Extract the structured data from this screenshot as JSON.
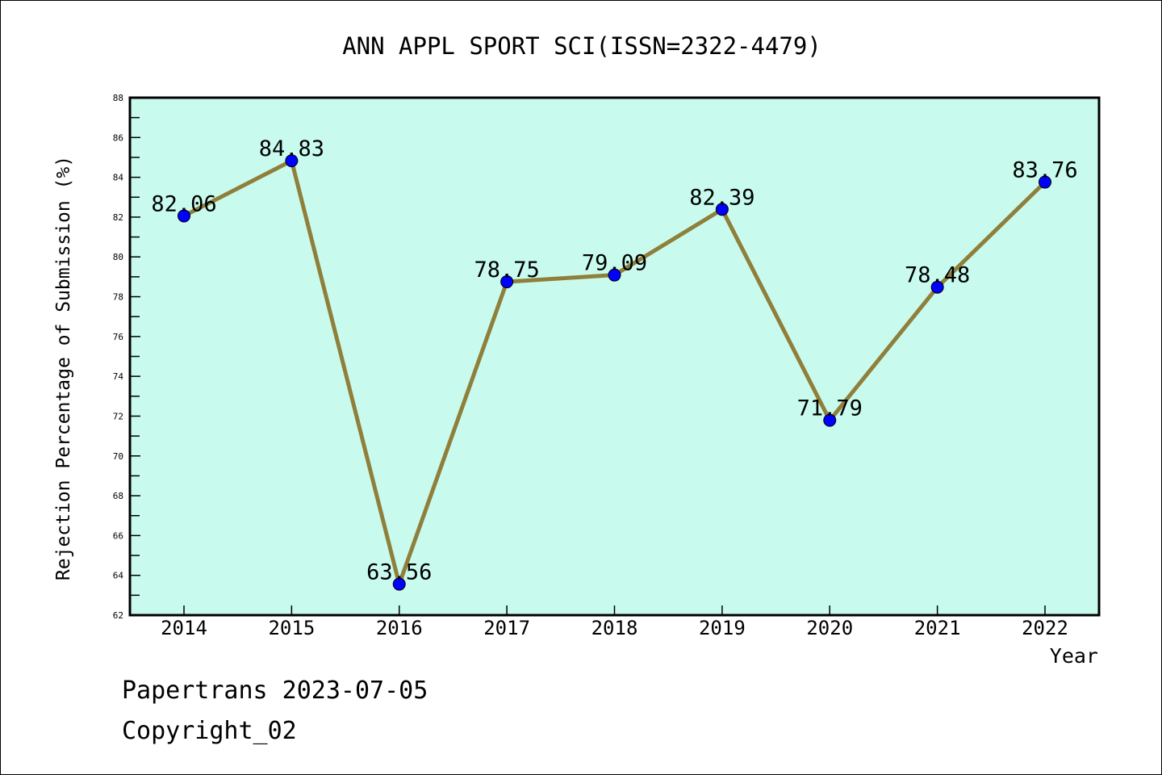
{
  "chart_data": {
    "type": "line",
    "title": "ANN APPL SPORT SCI(ISSN=2322-4479)",
    "xlabel": "Year",
    "ylabel": "Rejection Percentage of Submission (%)",
    "categories": [
      "2014",
      "2015",
      "2016",
      "2017",
      "2018",
      "2019",
      "2020",
      "2021",
      "2022"
    ],
    "series": [
      {
        "name": "Rejection Percentage",
        "values": [
          82.06,
          84.83,
          63.56,
          78.75,
          79.09,
          82.39,
          71.79,
          78.48,
          83.76
        ],
        "labels": [
          "82.06",
          "84.83",
          "63.56",
          "78.75",
          "79.09",
          "82.39",
          "71.79",
          "78.48",
          "83.76"
        ]
      }
    ],
    "ylim": [
      62,
      88
    ],
    "yticks": [
      "62",
      "64",
      "66",
      "68",
      "70",
      "72",
      "74",
      "76",
      "78",
      "80",
      "82",
      "84",
      "86",
      "88"
    ],
    "grid": false,
    "colors": {
      "background": "#c8fbee",
      "line": "#8f7f3a",
      "marker": "#0000ff"
    }
  },
  "footer": {
    "line1": "Papertrans 2023-07-05",
    "line2": "Copyright_02"
  }
}
